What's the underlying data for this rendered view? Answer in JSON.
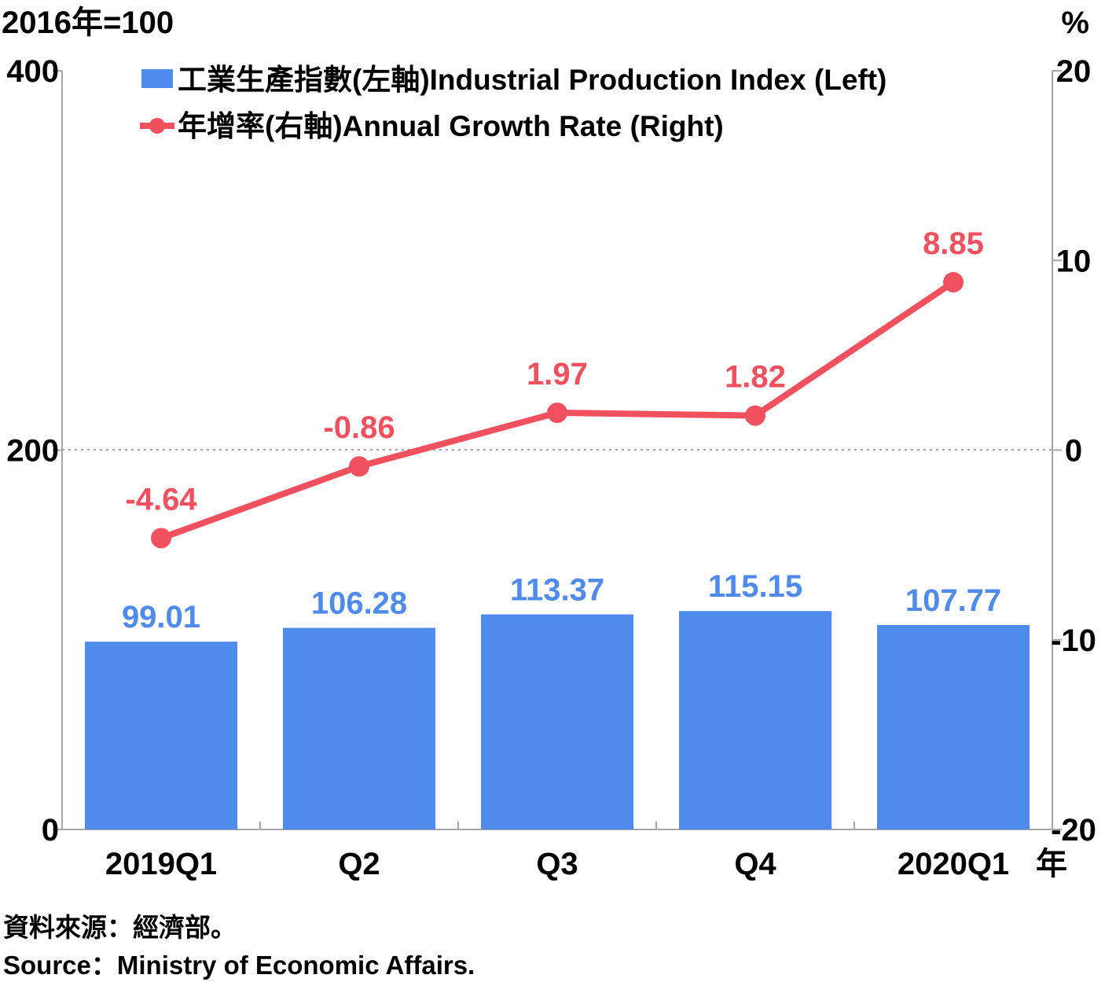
{
  "chart_data": {
    "type": "bar",
    "left_unit_label": "2016年=100",
    "right_unit_label": "%",
    "x_unit_label": "年",
    "categories": [
      "2019Q1",
      "Q2",
      "Q3",
      "Q4",
      "2020Q1"
    ],
    "series": [
      {
        "name": "工業生產指數(左軸)Industrial Production Index (Left)",
        "type": "bar",
        "axis": "left",
        "color": "#4f8bea",
        "values": [
          99.01,
          106.28,
          113.37,
          115.15,
          107.77
        ],
        "labels": [
          "99.01",
          "106.28",
          "113.37",
          "115.15",
          "107.77"
        ]
      },
      {
        "name": "年增率(右軸)Annual Growth Rate (Right)",
        "type": "line",
        "axis": "right",
        "color": "#f1505e",
        "values": [
          -4.64,
          -0.86,
          1.97,
          1.82,
          8.85
        ],
        "labels": [
          "-4.64",
          "-0.86",
          "1.97",
          "1.82",
          "8.85"
        ]
      }
    ],
    "left_axis": {
      "ylim": [
        0,
        400
      ],
      "ticks": [
        0,
        200,
        400
      ],
      "tick_labels": [
        "0",
        "200",
        "400"
      ]
    },
    "right_axis": {
      "ylim": [
        -20,
        20
      ],
      "ticks": [
        -20,
        -10,
        0,
        10,
        20
      ],
      "tick_labels": [
        "-20",
        "-10",
        "0",
        "10",
        "20"
      ]
    },
    "reference_line": {
      "axis": "right",
      "value": 0,
      "style": "dotted"
    },
    "legend_position": "top-left",
    "grid": false
  },
  "source": {
    "zh": "資料來源：經濟部。",
    "en": "Source：Ministry of Economic Affairs."
  }
}
